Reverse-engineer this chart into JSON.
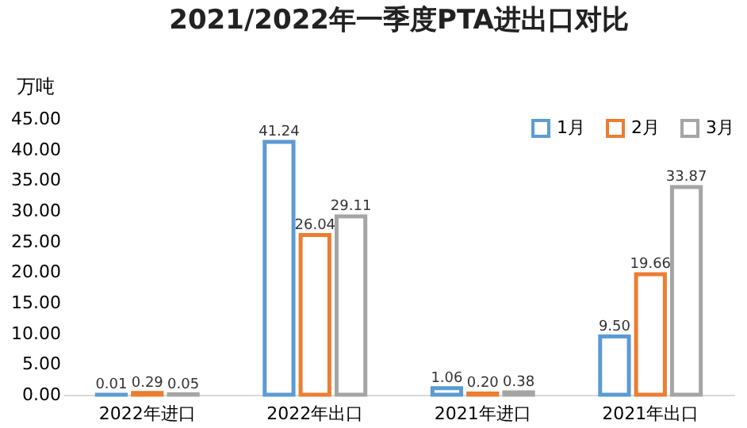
{
  "chart_data": {
    "type": "bar",
    "title": "2021/2022年一季度PTA进出口对比",
    "ylabel": "万吨",
    "categories": [
      "2022年进口",
      "2022年出口",
      "2021年进口",
      "2021年出口"
    ],
    "series": [
      {
        "name": "1月",
        "color": "#5b9bd5",
        "values": [
          0.01,
          41.24,
          1.06,
          9.5
        ],
        "value_labels": [
          "0.01",
          "41.24",
          "1.06",
          "9.50"
        ]
      },
      {
        "name": "2月",
        "color": "#ed7d31",
        "values": [
          0.29,
          26.04,
          0.2,
          19.66
        ],
        "value_labels": [
          "0.29",
          "26.04",
          "0.20",
          "19.66"
        ]
      },
      {
        "name": "3月",
        "color": "#a5a5a5",
        "values": [
          0.05,
          29.11,
          0.38,
          33.87
        ],
        "value_labels": [
          "0.05",
          "29.11",
          "0.38",
          "33.87"
        ]
      }
    ],
    "ylim": [
      0,
      45
    ],
    "yticks": [
      {
        "value": 0,
        "label": "0.00"
      },
      {
        "value": 5,
        "label": "5.00"
      },
      {
        "value": 10,
        "label": "10.00"
      },
      {
        "value": 15,
        "label": "15.00"
      },
      {
        "value": 20,
        "label": "20.00"
      },
      {
        "value": 25,
        "label": "25.00"
      },
      {
        "value": 30,
        "label": "30.00"
      },
      {
        "value": 35,
        "label": "35.00"
      },
      {
        "value": 40,
        "label": "40.00"
      },
      {
        "value": 45,
        "label": "45.00"
      }
    ],
    "legend": "top right",
    "grid": false
  }
}
